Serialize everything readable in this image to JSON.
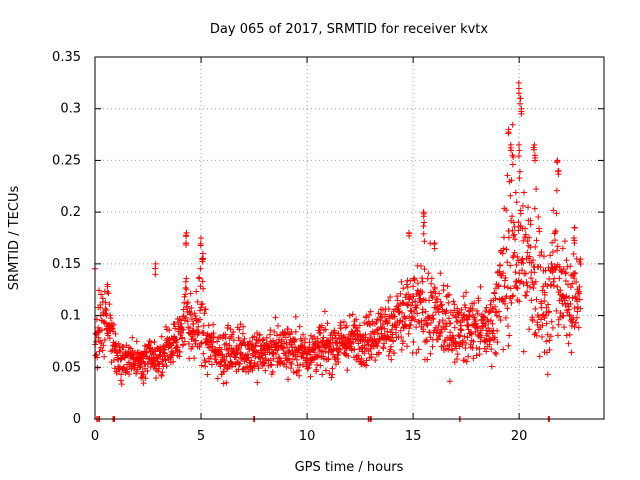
{
  "chart_data": {
    "type": "scatter",
    "title": "Day 065 of 2017, SRMTID for receiver kvtx",
    "xlabel": "GPS time / hours",
    "ylabel": "SRMTID / TECUs",
    "xlim": [
      0,
      24
    ],
    "ylim": [
      0,
      0.35
    ],
    "x_ticks": [
      0,
      5,
      10,
      15,
      20
    ],
    "x_tick_labels": [
      "0",
      "5",
      "10",
      "15",
      "20"
    ],
    "y_ticks": [
      0,
      0.05,
      0.1,
      0.15,
      0.2,
      0.25,
      0.3,
      0.35
    ],
    "y_tick_labels": [
      "0",
      "0.05",
      "0.1",
      "0.15",
      "0.2",
      "0.25",
      "0.3",
      "0.35"
    ],
    "grid": true,
    "marker": "plus",
    "color": "#ff0000",
    "series": [
      {
        "name": "SRMTID",
        "profile": [
          [
            0.0,
            0.06,
            0.03
          ],
          [
            0.3,
            0.09,
            0.03
          ],
          [
            0.5,
            0.1,
            0.025
          ],
          [
            0.8,
            0.08,
            0.02
          ],
          [
            1.0,
            0.06,
            0.015
          ],
          [
            2.0,
            0.055,
            0.015
          ],
          [
            3.0,
            0.06,
            0.015
          ],
          [
            4.0,
            0.08,
            0.02
          ],
          [
            4.3,
            0.11,
            0.035
          ],
          [
            4.6,
            0.08,
            0.02
          ],
          [
            5.0,
            0.1,
            0.04
          ],
          [
            5.3,
            0.07,
            0.02
          ],
          [
            6.0,
            0.065,
            0.02
          ],
          [
            7.0,
            0.065,
            0.02
          ],
          [
            8.0,
            0.065,
            0.02
          ],
          [
            9.0,
            0.07,
            0.02
          ],
          [
            10.0,
            0.065,
            0.02
          ],
          [
            11.0,
            0.07,
            0.02
          ],
          [
            12.0,
            0.075,
            0.02
          ],
          [
            13.0,
            0.08,
            0.02
          ],
          [
            14.0,
            0.09,
            0.025
          ],
          [
            14.5,
            0.1,
            0.035
          ],
          [
            15.0,
            0.1,
            0.035
          ],
          [
            15.5,
            0.11,
            0.04
          ],
          [
            16.0,
            0.1,
            0.035
          ],
          [
            17.0,
            0.085,
            0.025
          ],
          [
            18.0,
            0.09,
            0.025
          ],
          [
            18.5,
            0.085,
            0.02
          ],
          [
            19.0,
            0.11,
            0.04
          ],
          [
            19.5,
            0.16,
            0.07
          ],
          [
            20.0,
            0.17,
            0.08
          ],
          [
            20.3,
            0.14,
            0.06
          ],
          [
            20.8,
            0.15,
            0.07
          ],
          [
            21.3,
            0.1,
            0.04
          ],
          [
            21.7,
            0.15,
            0.06
          ],
          [
            22.0,
            0.12,
            0.04
          ],
          [
            22.8,
            0.12,
            0.04
          ]
        ],
        "peaks": [
          [
            4.3,
            0.18
          ],
          [
            4.3,
            0.17
          ],
          [
            5.0,
            0.175
          ],
          [
            5.1,
            0.16
          ],
          [
            5.05,
            0.155
          ],
          [
            15.5,
            0.2
          ],
          [
            15.5,
            0.19
          ],
          [
            16.0,
            0.17
          ],
          [
            14.8,
            0.18
          ],
          [
            19.5,
            0.28
          ],
          [
            19.6,
            0.265
          ],
          [
            19.7,
            0.255
          ],
          [
            20.0,
            0.325
          ],
          [
            20.05,
            0.31
          ],
          [
            20.1,
            0.3
          ],
          [
            20.0,
            0.265
          ],
          [
            20.7,
            0.265
          ],
          [
            20.75,
            0.255
          ],
          [
            21.8,
            0.25
          ],
          [
            21.85,
            0.24
          ],
          [
            22.6,
            0.185
          ],
          [
            22.6,
            0.175
          ],
          [
            2.85,
            0.15
          ],
          [
            0.6,
            0.13
          ]
        ],
        "zeros": [
          0.1,
          0.2,
          0.85,
          0.9,
          7.5,
          12.9,
          13.0,
          17.2,
          21.4
        ]
      }
    ]
  }
}
